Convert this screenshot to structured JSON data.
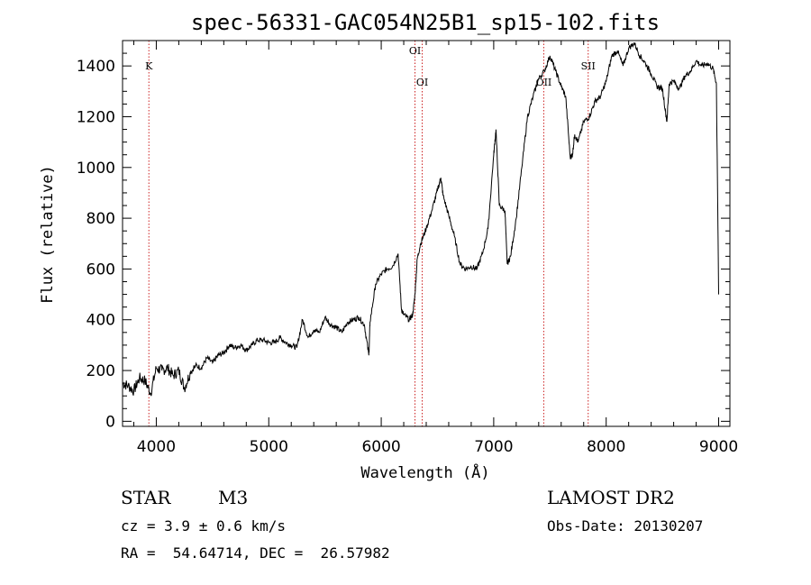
{
  "chart_data": {
    "type": "line",
    "title": "spec-56331-GAC054N25B1_sp15-102.fits",
    "xlabel": "Wavelength (Å)",
    "ylabel": "Flux (relative)",
    "xlim": [
      3700,
      9100
    ],
    "ylim": [
      -20,
      1500
    ],
    "xticks": [
      4000,
      5000,
      6000,
      7000,
      8000,
      9000
    ],
    "yticks": [
      0,
      200,
      400,
      600,
      800,
      1000,
      1200,
      1400
    ],
    "series": [
      {
        "name": "flux",
        "x": [
          3700,
          3750,
          3800,
          3850,
          3900,
          3950,
          4000,
          4050,
          4100,
          4150,
          4200,
          4250,
          4300,
          4350,
          4400,
          4450,
          4500,
          4550,
          4600,
          4650,
          4700,
          4750,
          4800,
          4850,
          4900,
          4950,
          5000,
          5050,
          5100,
          5150,
          5200,
          5250,
          5300,
          5350,
          5400,
          5450,
          5500,
          5550,
          5600,
          5650,
          5700,
          5750,
          5800,
          5850,
          5890,
          5900,
          5950,
          6000,
          6050,
          6100,
          6150,
          6180,
          6200,
          6250,
          6280,
          6300,
          6320,
          6350,
          6400,
          6450,
          6500,
          6530,
          6550,
          6600,
          6650,
          6700,
          6750,
          6800,
          6850,
          6900,
          6950,
          7000,
          7020,
          7050,
          7100,
          7120,
          7150,
          7200,
          7250,
          7300,
          7350,
          7400,
          7450,
          7500,
          7550,
          7600,
          7640,
          7680,
          7700,
          7720,
          7750,
          7800,
          7850,
          7900,
          7950,
          8000,
          8050,
          8100,
          8150,
          8200,
          8250,
          8300,
          8350,
          8400,
          8450,
          8500,
          8540,
          8560,
          8600,
          8650,
          8700,
          8750,
          8800,
          8850,
          8900,
          8950,
          8980,
          9000
        ],
        "y": [
          150,
          140,
          120,
          170,
          160,
          110,
          210,
          200,
          210,
          180,
          200,
          130,
          190,
          220,
          210,
          250,
          230,
          260,
          270,
          300,
          290,
          300,
          280,
          300,
          320,
          320,
          310,
          310,
          330,
          310,
          300,
          290,
          400,
          330,
          360,
          350,
          410,
          380,
          370,
          350,
          390,
          400,
          410,
          380,
          260,
          390,
          540,
          580,
          600,
          610,
          660,
          440,
          420,
          400,
          420,
          500,
          640,
          700,
          760,
          830,
          910,
          960,
          890,
          810,
          730,
          620,
          600,
          610,
          600,
          660,
          760,
          1050,
          1150,
          850,
          830,
          620,
          650,
          800,
          1000,
          1200,
          1280,
          1350,
          1380,
          1440,
          1380,
          1320,
          1280,
          1040,
          1050,
          1130,
          1100,
          1180,
          1200,
          1260,
          1280,
          1340,
          1440,
          1460,
          1400,
          1470,
          1490,
          1440,
          1410,
          1370,
          1320,
          1310,
          1180,
          1330,
          1340,
          1310,
          1360,
          1380,
          1420,
          1400,
          1410,
          1390,
          1330,
          500
        ]
      }
    ],
    "line_ids": [
      {
        "label": "K",
        "x": 3934,
        "row": 1
      },
      {
        "label": "OI",
        "x": 6300,
        "row": 0
      },
      {
        "label": "OI",
        "x": 6364,
        "row": 2
      },
      {
        "label": "OII",
        "x": 7445,
        "row": 2
      },
      {
        "label": "SII",
        "x": 7840,
        "row": 1
      }
    ]
  },
  "info": {
    "class_label": "STAR",
    "subclass": "M3",
    "survey": "LAMOST DR2",
    "cz": "cz = 3.9 ± 0.6 km/s",
    "obs_date": "Obs-Date: 20130207",
    "radec": "RA =  54.64714, DEC =  26.57982"
  },
  "colors": {
    "axis": "#000000",
    "spectrum": "#000000",
    "marker": "#cc2222"
  }
}
